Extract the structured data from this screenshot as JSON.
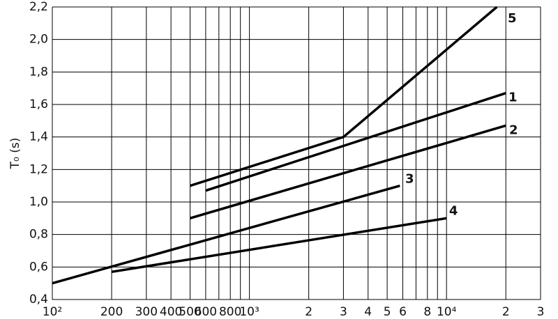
{
  "chart_data": {
    "type": "line",
    "y_label": "T₀ (s)",
    "log_x": true,
    "grid": true,
    "xlim": [
      100,
      30000
    ],
    "ylim": [
      0.4,
      2.2
    ],
    "xticks": [
      {
        "value": 100,
        "label": "10²"
      },
      200,
      300,
      400,
      500,
      600,
      800,
      {
        "value": 1000,
        "label": "10³"
      },
      {
        "value": 2000,
        "label": "2"
      },
      {
        "value": 3000,
        "label": "3"
      },
      {
        "value": 4000,
        "label": "4"
      },
      {
        "value": 5000,
        "label": "5"
      },
      {
        "value": 6000,
        "label": "6"
      },
      {
        "value": 8000,
        "label": "8"
      },
      {
        "value": 10000,
        "label": "10⁴"
      },
      {
        "value": 20000,
        "label": "2"
      },
      {
        "value": 30000,
        "label": "3"
      }
    ],
    "xminor": [
      700,
      900,
      7000,
      9000
    ],
    "yticks": [
      {
        "value": 0.4,
        "label": "0,4"
      },
      {
        "value": 0.6,
        "label": "0,6"
      },
      {
        "value": 0.8,
        "label": "0,8"
      },
      {
        "value": 1.0,
        "label": "1,0"
      },
      {
        "value": 1.2,
        "label": "1,2"
      },
      {
        "value": 1.4,
        "label": "1,4"
      },
      {
        "value": 1.6,
        "label": "1,6"
      },
      {
        "value": 1.8,
        "label": "1,8"
      },
      {
        "value": 2.0,
        "label": "2,0"
      },
      {
        "value": 2.2,
        "label": "2,2"
      }
    ],
    "series": [
      {
        "name": "5",
        "color": "#000000",
        "x": [
          500,
          3000,
          18000
        ],
        "values": [
          1.1,
          1.4,
          2.2
        ]
      },
      {
        "name": "1",
        "color": "#000000",
        "x": [
          600,
          20000
        ],
        "values": [
          1.07,
          1.67
        ]
      },
      {
        "name": "2",
        "color": "#000000",
        "x": [
          500,
          20000
        ],
        "values": [
          0.9,
          1.47
        ]
      },
      {
        "name": "3",
        "color": "#000000",
        "x": [
          100,
          5800
        ],
        "values": [
          0.5,
          1.1
        ]
      },
      {
        "name": "4",
        "color": "#000000",
        "x": [
          200,
          10000
        ],
        "values": [
          0.57,
          0.9
        ]
      }
    ]
  }
}
